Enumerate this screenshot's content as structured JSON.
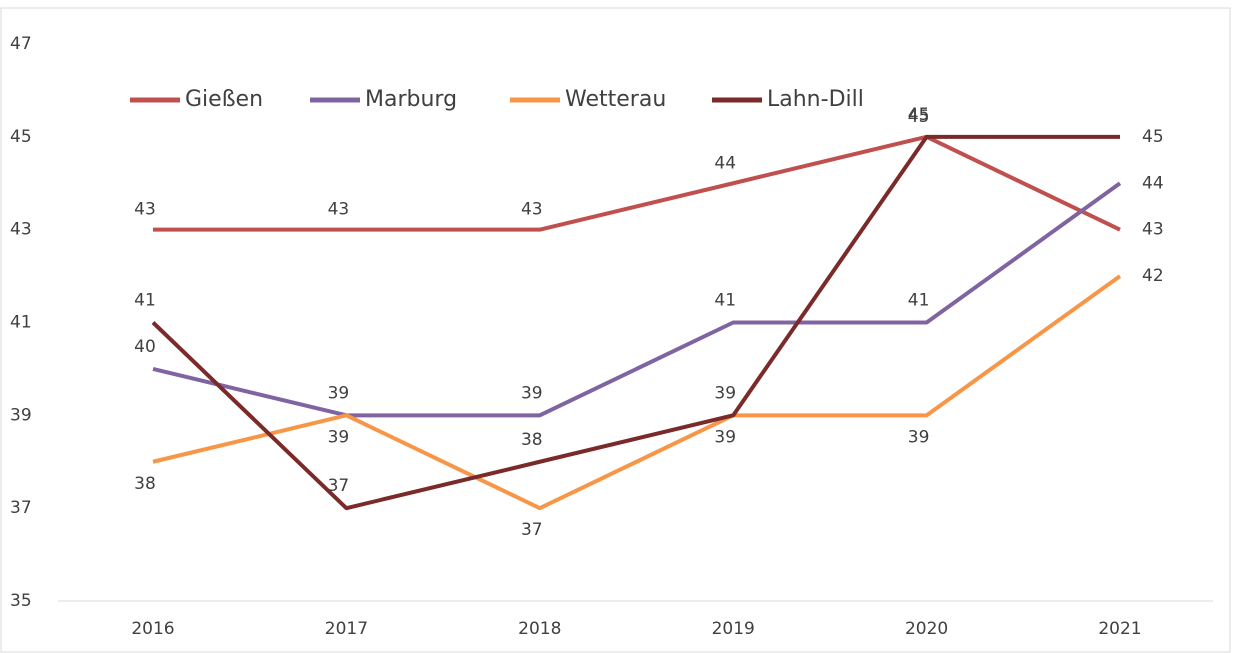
{
  "chart_data": {
    "type": "line",
    "categories": [
      "2016",
      "2017",
      "2018",
      "2019",
      "2020",
      "2021"
    ],
    "series": [
      {
        "name": "Gießen",
        "color": "#c0504d",
        "values": [
          43,
          43,
          43,
          44,
          45,
          43
        ]
      },
      {
        "name": "Marburg",
        "color": "#8064a2",
        "values": [
          40,
          39,
          39,
          41,
          41,
          44
        ]
      },
      {
        "name": "Wetterau",
        "color": "#f79646",
        "values": [
          38,
          39,
          37,
          39,
          39,
          42
        ]
      },
      {
        "name": "Lahn-Dill",
        "color": "#7b2a2a",
        "values": [
          41,
          37,
          38,
          39,
          45,
          45
        ]
      }
    ],
    "ylim": [
      35,
      47
    ],
    "yticks": [
      35,
      37,
      39,
      41,
      43,
      45,
      47
    ],
    "grid": false,
    "legend": "top-left"
  }
}
